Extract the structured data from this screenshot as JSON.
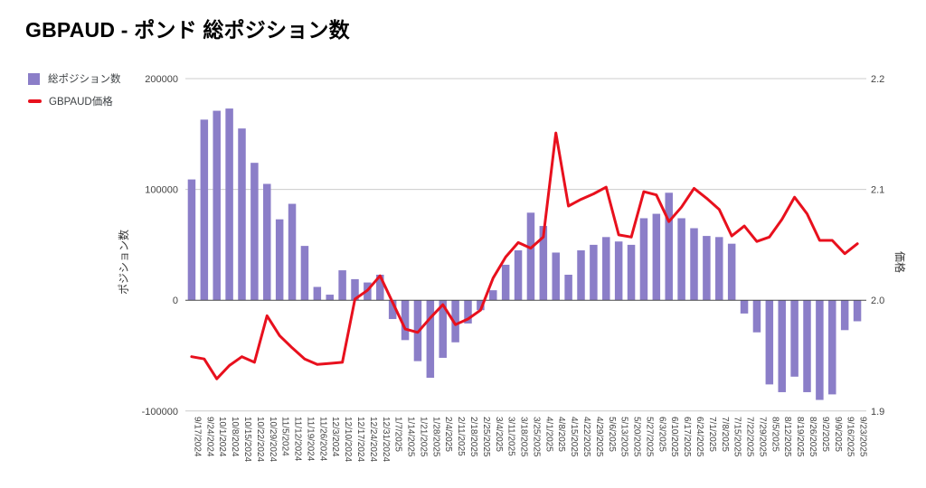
{
  "title": "GBPAUD - ポンド 総ポジション数",
  "legend": [
    {
      "label": "総ポジション数",
      "color": "#8b7ec8",
      "swatch": "square"
    },
    {
      "label": "GBPAUD価格",
      "color": "#e8101d",
      "swatch": "line"
    }
  ],
  "axes": {
    "left_title": "ポジション数",
    "right_title": "価格",
    "left_tick_labels": [
      "200000",
      "100000",
      "0",
      "-100000"
    ],
    "right_tick_labels": [
      "2.2",
      "2.1",
      "2.0",
      "1.9"
    ]
  },
  "colors": {
    "bar": "#8b7ec8",
    "line": "#e8101d",
    "gridline": "#cccccc",
    "zero_axis": "#4a4a4a",
    "tick_text": "#444444",
    "axis_title_text": "#333333"
  },
  "chart_data": {
    "type": "bar",
    "title": "GBPAUD - ポンド 総ポジション数",
    "categories": [
      "9/17/2024",
      "9/24/2024",
      "10/1/2024",
      "10/8/2024",
      "10/15/2024",
      "10/22/2024",
      "10/29/2024",
      "11/5/2024",
      "11/12/2024",
      "11/19/2024",
      "11/26/2024",
      "12/3/2024",
      "12/10/2024",
      "12/17/2024",
      "12/24/2024",
      "12/31/2024",
      "1/7/2025",
      "1/14/2025",
      "1/21/2025",
      "1/28/2025",
      "2/4/2025",
      "2/11/2025",
      "2/18/2025",
      "2/25/2025",
      "3/4/2025",
      "3/11/2025",
      "3/18/2025",
      "3/25/2025",
      "4/1/2025",
      "4/8/2025",
      "4/15/2025",
      "4/22/2025",
      "4/29/2025",
      "5/6/2025",
      "5/13/2025",
      "5/20/2025",
      "5/27/2025",
      "6/3/2025",
      "6/10/2025",
      "6/17/2025",
      "6/24/2025",
      "7/1/2025",
      "7/8/2025",
      "7/15/2025",
      "7/22/2025",
      "7/29/2025",
      "8/5/2025",
      "8/12/2025",
      "8/19/2025",
      "8/26/2025",
      "9/2/2025",
      "9/9/2025",
      "9/16/2025",
      "9/23/2025"
    ],
    "series": [
      {
        "name": "総ポジション数",
        "type": "bar",
        "axis": "left",
        "values": [
          109000,
          163000,
          171000,
          173000,
          155000,
          124000,
          105000,
          73000,
          87000,
          49000,
          12000,
          5000,
          27000,
          19000,
          16000,
          23000,
          -17000,
          -36000,
          -55000,
          -70000,
          -52000,
          -38000,
          -21000,
          -9000,
          9000,
          32000,
          45000,
          79000,
          67000,
          43000,
          23000,
          45000,
          50000,
          57000,
          53000,
          50000,
          74000,
          78000,
          97000,
          74000,
          65000,
          58000,
          57000,
          51000,
          -12000,
          -29000,
          -76000,
          -83000,
          -69000,
          -83000,
          -90000,
          -85000,
          -27000,
          -19000
        ]
      },
      {
        "name": "GBPAUD価格",
        "type": "line",
        "axis": "right",
        "values": [
          1.949,
          1.947,
          1.929,
          1.941,
          1.949,
          1.944,
          1.986,
          1.968,
          1.957,
          1.947,
          1.942,
          1.943,
          1.944,
          2.001,
          2.009,
          2.022,
          1.998,
          1.974,
          1.971,
          1.984,
          1.996,
          1.978,
          1.983,
          1.991,
          2.02,
          2.039,
          2.052,
          2.047,
          2.057,
          2.151,
          2.085,
          2.091,
          2.096,
          2.102,
          2.059,
          2.057,
          2.098,
          2.095,
          2.071,
          2.084,
          2.101,
          2.092,
          2.082,
          2.058,
          2.067,
          2.053,
          2.057,
          2.073,
          2.093,
          2.078,
          2.054,
          2.054,
          2.042,
          2.051
        ]
      }
    ],
    "left_axis": {
      "label": "ポジション数",
      "range": [
        -100000,
        200000
      ],
      "ticks": [
        200000,
        100000,
        0,
        -100000
      ]
    },
    "right_axis": {
      "label": "価格",
      "range": [
        1.9,
        2.2
      ],
      "ticks": [
        2.2,
        2.1,
        2.0,
        1.9
      ]
    },
    "grid": true,
    "legend_position": "top-left",
    "xlabel_rotation": 90
  }
}
